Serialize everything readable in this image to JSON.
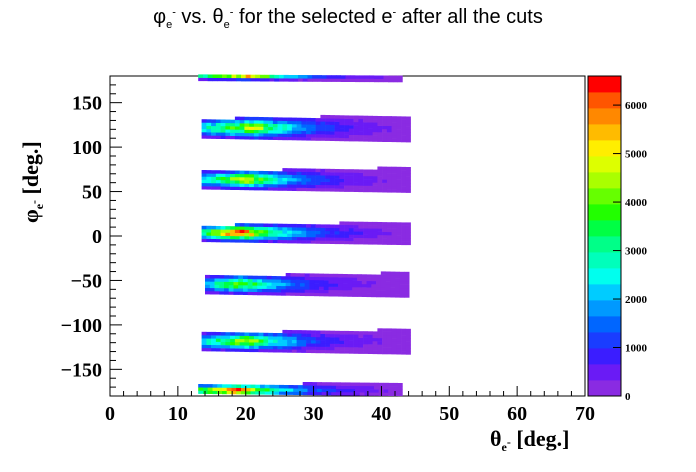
{
  "title": {
    "symbol_y": "φ",
    "sub_y": "e",
    "sup_y": "-",
    "mid1": " vs. ",
    "symbol_x": "θ",
    "sub_x": "e",
    "sup_x": "-",
    "mid2": " for the selected e",
    "sup_e": "-",
    "tail": " after all the cuts"
  },
  "xlabel": {
    "symbol": "θ",
    "sub": "e",
    "sup": "-",
    "unit": " [deg.]"
  },
  "ylabel": {
    "symbol": "φ",
    "sub": "e",
    "sup": "-",
    "unit": " [deg.]"
  },
  "chart_data": {
    "type": "heatmap",
    "title": "φe- vs. θe- for the selected e- after all the cuts",
    "xlabel": "θe- [deg.]",
    "ylabel": "φe- [deg.]",
    "xlim": [
      0,
      70
    ],
    "ylim": [
      -180,
      180
    ],
    "x_ticks": [
      0,
      10,
      20,
      30,
      40,
      50,
      60,
      70
    ],
    "y_ticks": [
      -150,
      -100,
      -50,
      0,
      50,
      100,
      150
    ],
    "colorbar": {
      "range": [
        0,
        6600
      ],
      "ticks": [
        0,
        1000,
        2000,
        3000,
        4000,
        5000,
        6000
      ],
      "colors": [
        "#8a2be2",
        "#6a1bf5",
        "#3b1dff",
        "#1a3dff",
        "#0066ff",
        "#0099ff",
        "#00ccff",
        "#00ffee",
        "#00ffbb",
        "#00ff88",
        "#00ff44",
        "#22ff00",
        "#66ff00",
        "#aaff00",
        "#ddff00",
        "#ffee00",
        "#ffbb00",
        "#ff8800",
        "#ff5500",
        "#ff0000"
      ]
    },
    "sectors": [
      {
        "phi_center": 178,
        "phi_halfwidth": 4,
        "theta_start": 13,
        "theta_end": 43,
        "peak_theta": 20,
        "peak": 5200
      },
      {
        "phi_center": 120,
        "phi_halfwidth": 12,
        "theta_start": 13.5,
        "theta_end": 44,
        "peak_theta": 21,
        "peak": 4600
      },
      {
        "phi_center": 62,
        "phi_halfwidth": 11,
        "theta_start": 13.5,
        "theta_end": 44,
        "peak_theta": 20,
        "peak": 4700
      },
      {
        "phi_center": 2,
        "phi_halfwidth": 10,
        "theta_start": 13.5,
        "theta_end": 44,
        "peak_theta": 19,
        "peak": 6300
      },
      {
        "phi_center": -56,
        "phi_halfwidth": 11,
        "theta_start": 14,
        "theta_end": 44,
        "peak_theta": 19,
        "peak": 4200
      },
      {
        "phi_center": -120,
        "phi_halfwidth": 11,
        "theta_start": 13.5,
        "theta_end": 44,
        "peak_theta": 20,
        "peak": 4500
      },
      {
        "phi_center": -175,
        "phi_halfwidth": 7,
        "theta_start": 13,
        "theta_end": 43,
        "peak_theta": 18,
        "peak": 6500
      }
    ]
  }
}
